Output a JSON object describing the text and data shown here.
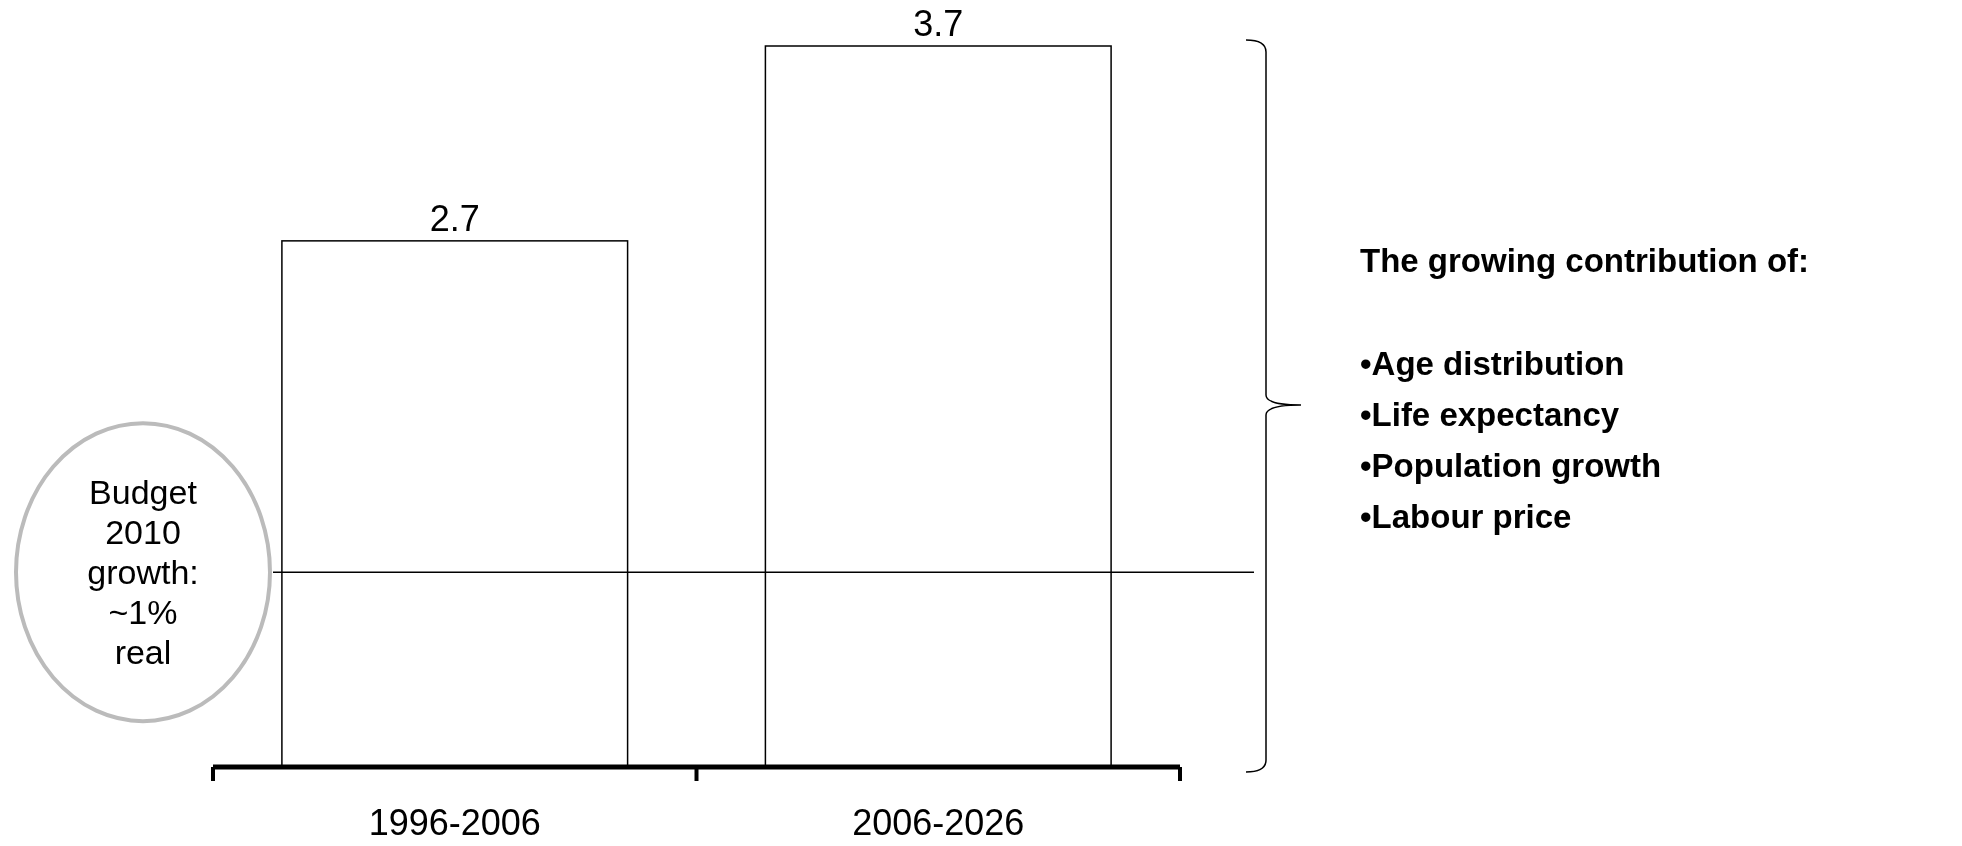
{
  "chart_data": {
    "type": "bar",
    "categories": [
      "1996-2006",
      "2006-2026"
    ],
    "values": [
      2.7,
      3.7
    ],
    "color": "#ffffff",
    "data_labels": true,
    "ref_lines": [
      {
        "axis": "y",
        "value": 1,
        "label": "Budget 2010 growth: ~1% real",
        "color": "#000000"
      }
    ],
    "annotations": [
      "The growing contribution of:",
      "•Age distribution",
      "•Life expectancy",
      "•Population growth",
      "•Labour price"
    ]
  }
}
